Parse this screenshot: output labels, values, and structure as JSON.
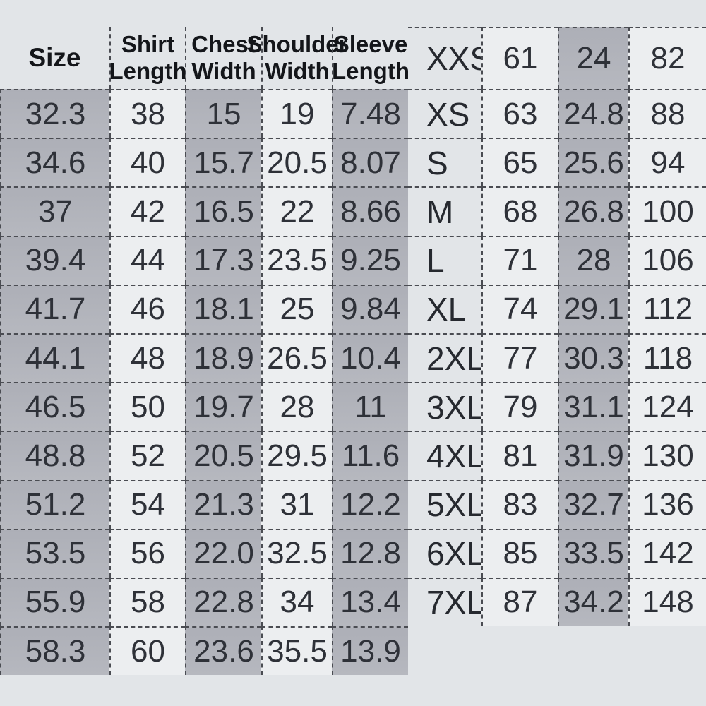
{
  "chart_data": {
    "type": "table",
    "size_column_header": "Size",
    "column_groups": [
      {
        "lines": [
          "Shirt",
          "Length"
        ]
      },
      {
        "lines": [
          "Chest",
          "Width"
        ]
      },
      {
        "lines": [
          "Shoulder",
          "Width"
        ]
      },
      {
        "lines": [
          "Sleeve",
          "Length"
        ]
      }
    ],
    "rows": [
      {
        "size": "XXS",
        "values": [
          "61",
          "24",
          "82",
          "32.3",
          "38",
          "15",
          "19",
          "7.48"
        ]
      },
      {
        "size": "XS",
        "values": [
          "63",
          "24.8",
          "88",
          "34.6",
          "40",
          "15.7",
          "20.5",
          "8.07"
        ]
      },
      {
        "size": "S",
        "values": [
          "65",
          "25.6",
          "94",
          "37",
          "42",
          "16.5",
          "22",
          "8.66"
        ]
      },
      {
        "size": "M",
        "values": [
          "68",
          "26.8",
          "100",
          "39.4",
          "44",
          "17.3",
          "23.5",
          "9.25"
        ]
      },
      {
        "size": "L",
        "values": [
          "71",
          "28",
          "106",
          "41.7",
          "46",
          "18.1",
          "25",
          "9.84"
        ]
      },
      {
        "size": "XL",
        "values": [
          "74",
          "29.1",
          "112",
          "44.1",
          "48",
          "18.9",
          "26.5",
          "10.4"
        ]
      },
      {
        "size": "2XL",
        "values": [
          "77",
          "30.3",
          "118",
          "46.5",
          "50",
          "19.7",
          "28",
          "11"
        ]
      },
      {
        "size": "3XL",
        "values": [
          "79",
          "31.1",
          "124",
          "48.8",
          "52",
          "20.5",
          "29.5",
          "11.6"
        ]
      },
      {
        "size": "4XL",
        "values": [
          "81",
          "31.9",
          "130",
          "51.2",
          "54",
          "21.3",
          "31",
          "12.2"
        ]
      },
      {
        "size": "5XL",
        "values": [
          "83",
          "32.7",
          "136",
          "53.5",
          "56",
          "22.0",
          "32.5",
          "12.8"
        ]
      },
      {
        "size": "6XL",
        "values": [
          "85",
          "33.5",
          "142",
          "55.9",
          "58",
          "22.8",
          "34",
          "13.4"
        ]
      },
      {
        "size": "7XL",
        "values": [
          "87",
          "34.2",
          "148",
          "58.3",
          "60",
          "23.6",
          "35.5",
          "13.9"
        ]
      }
    ]
  },
  "colors": {
    "page_bg": "#e2e5e8",
    "cell_light": "#eceef0",
    "cell_gray_a": "#adafb7",
    "cell_gray_b": "#b6b8bf",
    "border": "#4a4c52",
    "text": "#2e3138",
    "header_text": "#14161a"
  }
}
